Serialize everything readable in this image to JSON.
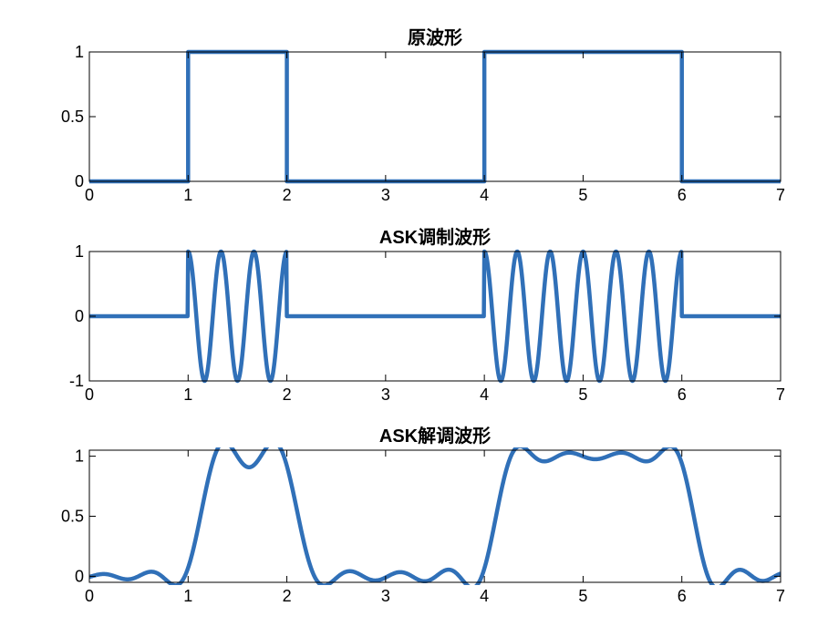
{
  "chart_data": [
    {
      "type": "line",
      "title": "原波形",
      "xlabel": "",
      "ylabel": "",
      "xlim": [
        0,
        7
      ],
      "ylim": [
        0,
        1
      ],
      "xticks": [
        "0",
        "1",
        "2",
        "3",
        "4",
        "5",
        "6",
        "7"
      ],
      "yticks": [
        "0",
        "0.5",
        "1"
      ],
      "grid": false,
      "line_color": "#3070b8",
      "signal": "original",
      "data_bits": [
        0,
        1,
        0,
        0,
        1,
        1,
        0
      ],
      "bit_duration": 1,
      "series": [
        {
          "x": [
            0,
            1,
            1,
            2,
            2,
            4,
            4,
            6,
            6,
            7
          ],
          "values": [
            0,
            0,
            1,
            1,
            0,
            0,
            1,
            1,
            0,
            0
          ]
        }
      ]
    },
    {
      "type": "line",
      "title": "ASK调制波形",
      "xlabel": "",
      "ylabel": "",
      "xlim": [
        0,
        7
      ],
      "ylim": [
        -1,
        1
      ],
      "xticks": [
        "0",
        "1",
        "2",
        "3",
        "4",
        "5",
        "6",
        "7"
      ],
      "yticks": [
        "-1",
        "0",
        "1"
      ],
      "grid": false,
      "line_color": "#3070b8",
      "signal": "ask_modulated",
      "data_bits": [
        0,
        1,
        0,
        0,
        1,
        1,
        0
      ],
      "bit_duration": 1,
      "carrier_cycles_per_bit": 3,
      "carrier": "cos",
      "series": [
        {
          "x": [
            0,
            1,
            1.1667,
            1.3333,
            1.5,
            1.6667,
            1.8333,
            2,
            4,
            4.1667,
            4.3333,
            4.5,
            4.6667,
            4.8333,
            5,
            5.1667,
            5.3333,
            5.5,
            5.6667,
            5.8333,
            6,
            7
          ],
          "values": [
            0,
            0,
            -1,
            1,
            -1,
            1,
            -1,
            1,
            0,
            -1,
            1,
            -1,
            1,
            -1,
            1,
            -1,
            1,
            -1,
            1,
            -1,
            1,
            0
          ]
        }
      ]
    },
    {
      "type": "line",
      "title": "ASK解调波形",
      "xlabel": "",
      "ylabel": "",
      "xlim": [
        0,
        7
      ],
      "ylim": [
        -0.05,
        1.05
      ],
      "xticks": [
        "0",
        "1",
        "2",
        "3",
        "4",
        "5",
        "6",
        "7"
      ],
      "yticks": [
        "0",
        "0.5",
        "1"
      ],
      "grid": false,
      "line_color": "#3070b8",
      "signal": "ask_demodulated",
      "data_bits": [
        0,
        1,
        0,
        0,
        1,
        1,
        0
      ],
      "bit_duration": 1,
      "series": [
        {
          "x": [
            0,
            0.5,
            0.7,
            0.85,
            1.0,
            1.15,
            1.3,
            1.5,
            1.7,
            1.85,
            2.0,
            2.15,
            2.3,
            3.0,
            3.7,
            3.85,
            4.0,
            4.15,
            4.3,
            5.0,
            5.7,
            5.85,
            6.0,
            6.15,
            6.3,
            7.0
          ],
          "values": [
            0.0,
            0.0,
            0.02,
            -0.04,
            0.5,
            1.04,
            0.99,
            1.01,
            0.99,
            1.04,
            0.5,
            -0.04,
            0.02,
            0.0,
            0.02,
            -0.04,
            0.5,
            1.04,
            0.99,
            1.0,
            0.99,
            1.04,
            0.5,
            -0.04,
            0.02,
            0.0
          ]
        }
      ]
    }
  ]
}
